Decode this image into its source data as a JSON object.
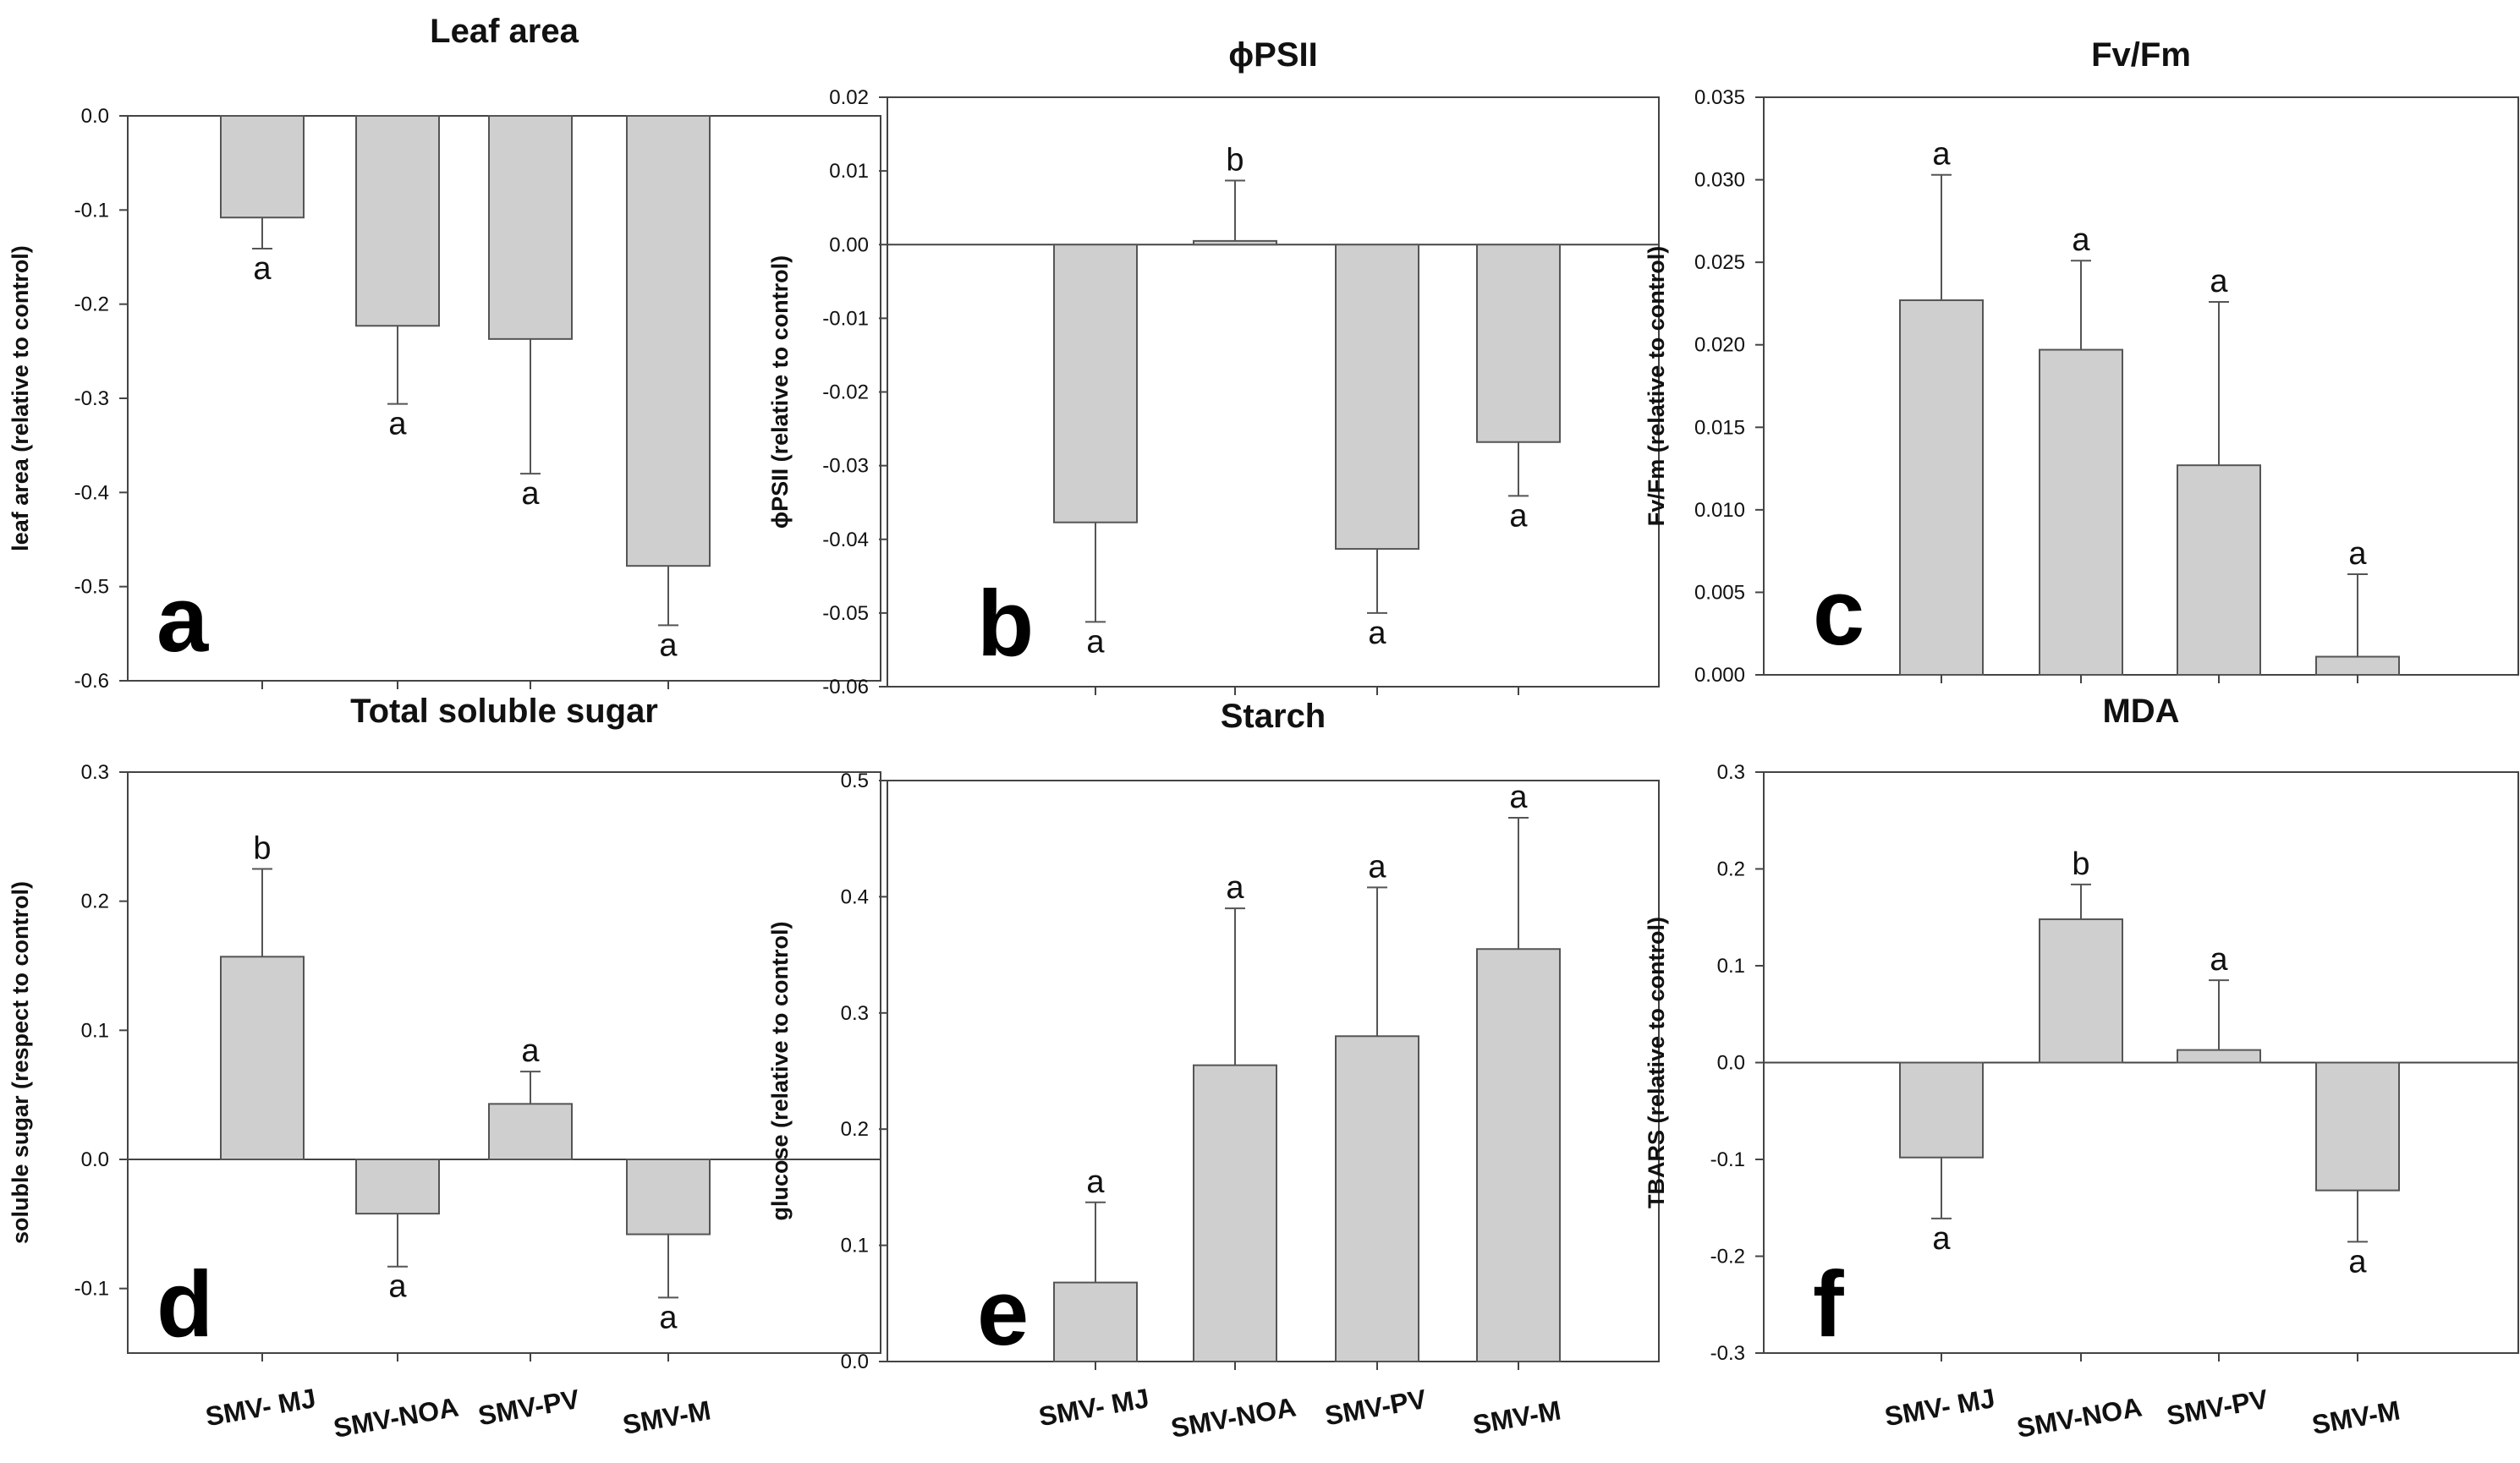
{
  "style": {
    "bar_fill": "#cfcfcf",
    "bar_stroke": "#555555",
    "frame": "#444444",
    "text": "#111111"
  },
  "chart_data": [
    {
      "type": "bar",
      "panel": "a",
      "title": "Leaf area",
      "ylabel": "leaf area (relative to control)",
      "categories": [
        "SMV- MJ",
        "SMV-NOA",
        "SMV-PV",
        "SMV-M"
      ],
      "values": [
        -0.108,
        -0.223,
        -0.237,
        -0.478
      ],
      "errors": [
        0.033,
        0.083,
        0.143,
        0.063
      ],
      "letters": [
        "a",
        "a",
        "a",
        "a"
      ],
      "ylim": [
        -0.6,
        0.0
      ],
      "yticks": [
        0.0,
        -0.1,
        -0.2,
        -0.3,
        -0.4,
        -0.5,
        -0.6
      ],
      "ytick_labels": [
        "0.0",
        "-0.1",
        "-0.2",
        "-0.3",
        "-0.4",
        "-0.5",
        "-0.6"
      ]
    },
    {
      "type": "bar",
      "panel": "b",
      "title": "ϕPSII",
      "ylabel": "ϕPSII (relative to control)",
      "categories": [
        "SMV- MJ",
        "SMV-NOA",
        "SMV-PV",
        "SMV-M"
      ],
      "values": [
        -0.0377,
        0.0005,
        -0.0413,
        -0.0268
      ],
      "errors": [
        0.0135,
        0.0082,
        0.0087,
        0.0073
      ],
      "letters": [
        "a",
        "b",
        "a",
        "a"
      ],
      "ylim": [
        -0.06,
        0.02
      ],
      "yticks": [
        0.02,
        0.01,
        0.0,
        -0.01,
        -0.02,
        -0.03,
        -0.04,
        -0.05,
        -0.06
      ],
      "ytick_labels": [
        "0.02",
        "0.01",
        "0.00",
        "-0.01",
        "-0.02",
        "-0.03",
        "-0.04",
        "-0.05",
        "-0.06"
      ]
    },
    {
      "type": "bar",
      "panel": "c",
      "title": "Fv/Fm",
      "ylabel": "Fv/Fm (relative to control)",
      "categories": [
        "SMV- MJ",
        "SMV-NOA",
        "SMV-PV",
        "SMV-M"
      ],
      "values": [
        0.0227,
        0.0197,
        0.0127,
        0.0011
      ],
      "errors": [
        0.0076,
        0.0054,
        0.0099,
        0.005
      ],
      "letters": [
        "a",
        "a",
        "a",
        "a"
      ],
      "ylim": [
        0.0,
        0.035
      ],
      "yticks": [
        0.035,
        0.03,
        0.025,
        0.02,
        0.015,
        0.01,
        0.005,
        0.0
      ],
      "ytick_labels": [
        "0.035",
        "0.030",
        "0.025",
        "0.020",
        "0.015",
        "0.010",
        "0.005",
        "0.000"
      ]
    },
    {
      "type": "bar",
      "panel": "d",
      "title": "Total soluble sugar",
      "ylabel": "soluble sugar (respect to control)",
      "categories": [
        "SMV- MJ",
        "SMV-NOA",
        "SMV-PV",
        "SMV-M"
      ],
      "values": [
        0.157,
        -0.042,
        0.043,
        -0.058
      ],
      "errors": [
        0.068,
        0.041,
        0.025,
        0.049
      ],
      "letters": [
        "b",
        "a",
        "a",
        "a"
      ],
      "ylim": [
        -0.15,
        0.3
      ],
      "yticks": [
        0.3,
        0.2,
        0.1,
        0.0,
        -0.1
      ],
      "ytick_labels": [
        "0.3",
        "0.2",
        "0.1",
        "0.0",
        "-0.1"
      ]
    },
    {
      "type": "bar",
      "panel": "e",
      "title": "Starch",
      "ylabel": "glucose (relative to control)",
      "categories": [
        "SMV- MJ",
        "SMV-NOA",
        "SMV-PV",
        "SMV-M"
      ],
      "values": [
        0.068,
        0.255,
        0.28,
        0.355
      ],
      "errors": [
        0.069,
        0.135,
        0.128,
        0.113
      ],
      "letters": [
        "a",
        "a",
        "a",
        "a"
      ],
      "ylim": [
        0.0,
        0.5
      ],
      "yticks": [
        0.5,
        0.4,
        0.3,
        0.2,
        0.1,
        0.0
      ],
      "ytick_labels": [
        "0.5",
        "0.4",
        "0.3",
        "0.2",
        "0.1",
        "0.0"
      ]
    },
    {
      "type": "bar",
      "panel": "f",
      "title": "MDA",
      "ylabel": "TBARS (relative to control)",
      "categories": [
        "SMV- MJ",
        "SMV-NOA",
        "SMV-PV",
        "SMV-M"
      ],
      "values": [
        -0.098,
        0.148,
        0.013,
        -0.132
      ],
      "errors": [
        0.063,
        0.036,
        0.072,
        0.053
      ],
      "letters": [
        "a",
        "b",
        "a",
        "a"
      ],
      "ylim": [
        -0.3,
        0.3
      ],
      "yticks": [
        0.3,
        0.2,
        0.1,
        0.0,
        -0.1,
        -0.2,
        -0.3
      ],
      "ytick_labels": [
        "0.3",
        "0.2",
        "0.1",
        "0.0",
        "-0.1",
        "-0.2",
        "-0.3"
      ]
    }
  ]
}
